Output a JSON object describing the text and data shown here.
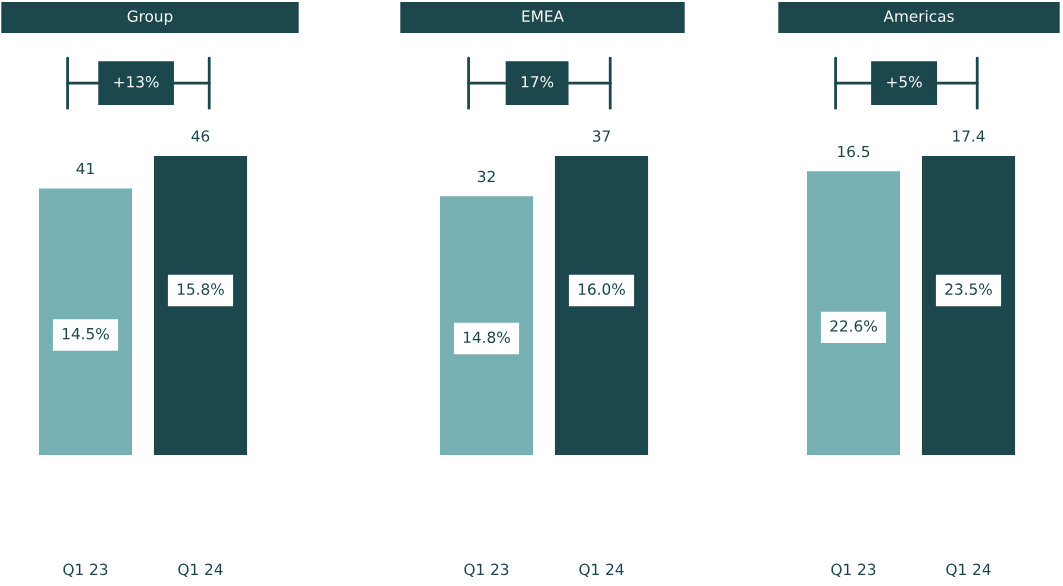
{
  "chart_data": [
    {
      "type": "bar",
      "title": "Group",
      "categories": [
        "Q1 23",
        "Q1 24"
      ],
      "values": [
        41,
        46
      ],
      "colors": [
        "#76b0b3",
        "#1b474d"
      ],
      "data_labels": true,
      "tick_labels": "x",
      "grid": false,
      "annotations": [
        "+13%",
        "14.5%",
        "15.8%"
      ]
    },
    {
      "type": "bar",
      "title": "EMEA",
      "categories": [
        "Q1 23",
        "Q1 24"
      ],
      "values": [
        32,
        37
      ],
      "colors": [
        "#76b0b3",
        "#1b474d"
      ],
      "data_labels": true,
      "tick_labels": "x",
      "grid": false,
      "annotations": [
        "17%",
        "14.8%",
        "16.0%"
      ]
    },
    {
      "type": "bar",
      "title": "Americas",
      "categories": [
        "Q1 23",
        "Q1 24"
      ],
      "values": [
        16.5,
        17.4
      ],
      "colors": [
        "#76b0b3",
        "#1b474d"
      ],
      "data_labels": true,
      "tick_labels": "x",
      "grid": false,
      "annotations": [
        "+5%",
        "22.6%",
        "23.5%"
      ]
    }
  ]
}
